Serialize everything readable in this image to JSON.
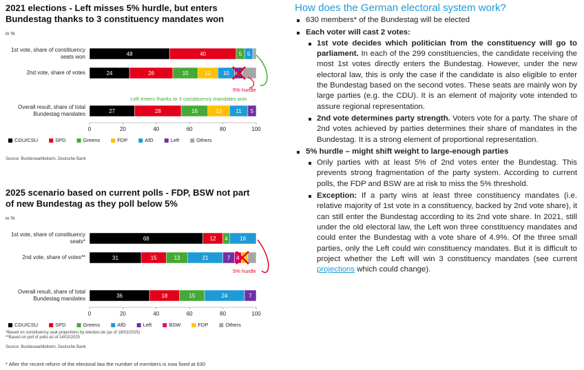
{
  "chart_data": [
    {
      "type": "stacked-bar-horizontal",
      "title": "2021 elections - Left misses 5% hurdle, but enters Bundestag thanks to 3 constituency mandates won",
      "subtitle": "in %",
      "categories": [
        "1st vote, share of constituency seats won",
        "2nd vote, share of votes",
        "Overall result, share of total Bundestag mandates"
      ],
      "series": [
        {
          "name": "CDU/CSU",
          "color": "#000000",
          "values": [
            48,
            24,
            27
          ]
        },
        {
          "name": "SPD",
          "color": "#e3001b",
          "values": [
            40,
            26,
            28
          ]
        },
        {
          "name": "Greens",
          "color": "#46a935",
          "values": [
            5,
            15,
            16
          ]
        },
        {
          "name": "FDP",
          "color": "#ffc000",
          "values": [
            null,
            12,
            13
          ]
        },
        {
          "name": "AfD",
          "color": "#1e9bd7",
          "values": [
            5,
            10,
            11
          ]
        },
        {
          "name": "Left",
          "color": "#7030a0",
          "values": [
            null,
            4.9,
            5
          ]
        },
        {
          "name": "Others",
          "color": "#a6a6a6",
          "values": [
            2,
            8.1,
            null
          ],
          "show_labels": false
        }
      ],
      "xlim": [
        0,
        100
      ],
      "xticks": [
        0,
        20,
        40,
        60,
        80,
        100
      ],
      "annotations": [
        "5% hurdle",
        "Left enters thanks to 3 constituency mandates won"
      ],
      "source": "Source: Bundeswahlleiterin, Deutsche Bank"
    },
    {
      "type": "stacked-bar-horizontal",
      "title": "2025 scenario based on current polls - FDP, BSW not part of new Bundestag as they poll below 5%",
      "subtitle": "in %",
      "categories": [
        "1st vote, share of constituency seats*",
        "2nd vote, share of votes**",
        "Overall result, share of total Bundestag mandates"
      ],
      "series": [
        {
          "name": "CDU/CSU",
          "color": "#000000",
          "values": [
            68,
            31,
            36
          ]
        },
        {
          "name": "SPD",
          "color": "#e3001b",
          "values": [
            12,
            15,
            18
          ]
        },
        {
          "name": "Greens",
          "color": "#46a935",
          "values": [
            4,
            13,
            15
          ]
        },
        {
          "name": "AfD",
          "color": "#1e9bd7",
          "values": [
            16,
            21,
            24
          ]
        },
        {
          "name": "Left",
          "color": "#7030a0",
          "values": [
            null,
            7,
            7
          ]
        },
        {
          "name": "BSW",
          "color": "#e6007e",
          "values": [
            null,
            4,
            null
          ]
        },
        {
          "name": "FDP",
          "color": "#ffc000",
          "values": [
            null,
            4,
            null
          ]
        },
        {
          "name": "Others",
          "color": "#a6a6a6",
          "values": [
            null,
            5,
            null
          ],
          "show_labels": false
        }
      ],
      "xlim": [
        0,
        100
      ],
      "xticks": [
        0,
        20,
        40,
        60,
        80,
        100
      ],
      "annotations": [
        "5% hurdle"
      ],
      "notes": [
        "*Based on constituency seat projections by election.de (as of 18/02/2025)",
        "**Based on poll of polls as of 14/02/2025"
      ],
      "source": "Source: Bundeswahlleiterin, Deutsche Bank"
    }
  ],
  "footnote": "* After the recent reform of the electoral law the number of members is now fixed at 630",
  "text": {
    "title": "How does the German electoral system work?",
    "items": [
      {
        "body": "630 members* of the Bundestag will be elected"
      },
      {
        "lead": "Each voter will cast 2 votes:",
        "sub": [
          {
            "lead": "1st vote decides which politician from the constituency will go to parliament.",
            "body": "In each of the 299 constituencies, the candidate receiving the most 1st votes directly enters the Bundestag. However, under the new electoral law, this is only the case if the candidate is also eligible to enter the Bundestag based on the second votes. These seats are mainly won by large parties (e.g. the CDU). It is an element of majority vote intended to assure regional representation."
          },
          {
            "lead": "2nd vote determines party strength.",
            "body": "Voters vote for a party. The share of 2nd votes achieved by parties determines their share of mandates in the Bundestag. It is a strong element of proportional representation."
          }
        ]
      },
      {
        "lead": "5% hurdle – might shift weight to large-enough parties",
        "sub": [
          {
            "body": "Only parties with at least 5% of 2nd votes enter the Bundestag. This prevents strong fragmentation of the party system. According to current polls, the FDP and BSW are at risk to miss the 5% threshold."
          },
          {
            "lead": "Exception:",
            "body": "If a party wins at least three constituency mandates (i.e. relative majority of 1st vote in a constituency, backed by 2nd vote share), it can still enter the Bundestag according to its 2nd vote share. In 2021, still under the old electoral law, the Left won three constituency mandates and could enter the Bundestag with a vote share of 4.9%. Of the three small parties, only the Left could win constituency mandates. But it is difficult to project whether the Left will win 3 constituency mandates (see current",
            "link": "projections",
            "tail": "which could change)."
          }
        ]
      }
    ]
  }
}
